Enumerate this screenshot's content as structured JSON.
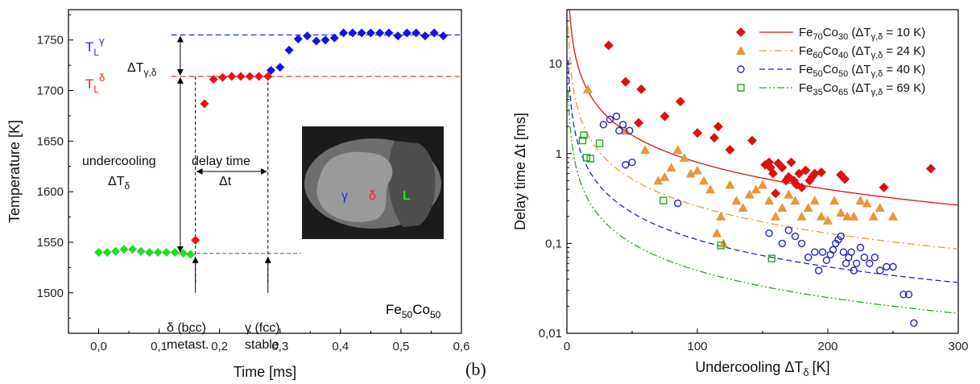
{
  "chart_data": [
    {
      "type": "scatter",
      "panel": "a",
      "xlabel": "Time [ms]",
      "ylabel": "Temperature [K]",
      "xlim": [
        -0.05,
        0.6
      ],
      "ylim": [
        1460,
        1780
      ],
      "xticks": [
        "0,0",
        "0,1",
        "0,2",
        "0,3",
        "0,4",
        "0,5",
        "0,6"
      ],
      "yticks": [
        "1500",
        "1550",
        "1600",
        "1650",
        "1700",
        "1750"
      ],
      "series": [
        {
          "color": "#22dd22",
          "x": [
            0.0,
            0.014,
            0.028,
            0.042,
            0.056,
            0.07,
            0.084,
            0.098,
            0.112,
            0.126,
            0.14,
            0.152
          ],
          "y": [
            1540,
            1540,
            1541,
            1543,
            1543,
            1541,
            1540,
            1540,
            1540,
            1540,
            1539,
            1538
          ]
        },
        {
          "color": "#ee1111",
          "x": [
            0.16,
            0.175,
            0.19,
            0.205,
            0.22,
            0.235,
            0.25,
            0.265,
            0.28
          ],
          "y": [
            1552,
            1687,
            1711,
            1713,
            1714,
            1714,
            1714,
            1714,
            1714
          ]
        },
        {
          "color": "#1111ee",
          "x": [
            0.285,
            0.3,
            0.315,
            0.33,
            0.345,
            0.36,
            0.375,
            0.39,
            0.405,
            0.42,
            0.435,
            0.45,
            0.465,
            0.48,
            0.495,
            0.51,
            0.525,
            0.54,
            0.555,
            0.57
          ],
          "y": [
            1720,
            1723,
            1740,
            1751,
            1754,
            1749,
            1750,
            1752,
            1757,
            1757,
            1757,
            1757,
            1757,
            1757,
            1754,
            1757,
            1757,
            1754,
            1757,
            1754
          ]
        }
      ],
      "reference_lines": [
        {
          "label_base": "T",
          "label_sub": "L",
          "label_sup": "γ",
          "y": 1755,
          "color": "#2233cc"
        },
        {
          "label_base": "T",
          "label_sub": "L",
          "label_sup": "δ",
          "y": 1714,
          "color": "#ee2222"
        },
        {
          "y": 1539,
          "color": "#555555"
        }
      ],
      "annotations": {
        "delta_t_gamma_delta": {
          "base": "ΔT",
          "sub": "γ,δ"
        },
        "undercooling": "undercooling",
        "undercooling_symbol": {
          "base": "ΔT",
          "sub": "δ"
        },
        "delay_time": "delay time",
        "delay_symbol": "Δt",
        "delta_phase": "δ (bcc)",
        "delta_phase_2": "metast.",
        "gamma_phase": "γ (fcc)",
        "gamma_phase_2": "stable",
        "alloy": {
          "p1": "Fe",
          "s1": "50",
          "p2": "Co",
          "s2": "50"
        },
        "inset_labels": [
          "γ",
          "δ",
          "L"
        ]
      }
    },
    {
      "type": "scatter",
      "panel": "b",
      "panel_label": "(b)",
      "xlabel_base": "Undercooling ΔT",
      "xlabel_sub": "δ",
      "xlabel_unit": "[K]",
      "ylabel": "Delay time Δt [ms]",
      "xlim": [
        0,
        300
      ],
      "ylim": [
        0.01,
        40
      ],
      "yscale": "log",
      "xticks": [
        "0",
        "100",
        "200",
        "300"
      ],
      "yticks": [
        "0,01",
        "0,1",
        "1",
        "10"
      ],
      "series": [
        {
          "name": "Fe70Co30",
          "legend": {
            "e1": "Fe",
            "s1": "70",
            "e2": "Co",
            "s2": "30",
            "dt": "10 K"
          },
          "marker": "diamond",
          "color": "#dd1111",
          "line": "solid",
          "fit_A": 80,
          "x": [
            32,
            45,
            55,
            57,
            75,
            87,
            100,
            113,
            116,
            125,
            142,
            152,
            155,
            156,
            158,
            160,
            162,
            165,
            168,
            170,
            172,
            174,
            176,
            178,
            180,
            183,
            186,
            188,
            190,
            195,
            210,
            213,
            243,
            279
          ],
          "y": [
            16,
            6.3,
            2.2,
            5.2,
            2.6,
            3.8,
            1.7,
            1.5,
            2.0,
            1.1,
            1.4,
            0.75,
            0.8,
            0.7,
            0.6,
            0.36,
            0.78,
            0.7,
            0.5,
            0.55,
            0.8,
            0.5,
            0.45,
            0.6,
            0.42,
            0.65,
            0.5,
            0.55,
            0.6,
            0.62,
            0.58,
            0.52,
            0.42,
            0.68
          ]
        },
        {
          "name": "Fe60Co40",
          "legend": {
            "e1": "Fe",
            "s1": "60",
            "e2": "Co",
            "s2": "40",
            "dt": "24 K"
          },
          "marker": "triangle",
          "color": "#e8963c",
          "line": "dashdot",
          "fit_A": 26,
          "x": [
            16,
            45,
            60,
            70,
            75,
            80,
            85,
            90,
            95,
            100,
            105,
            110,
            115,
            118,
            120,
            125,
            130,
            135,
            140,
            145,
            150,
            155,
            160,
            165,
            170,
            175,
            180,
            185,
            190,
            195,
            200,
            205,
            210,
            215,
            220,
            225,
            230,
            235,
            240,
            250
          ],
          "y": [
            5.2,
            1.8,
            1.1,
            0.5,
            0.55,
            0.7,
            1.1,
            0.9,
            0.6,
            0.65,
            0.5,
            0.4,
            0.13,
            0.2,
            0.1,
            0.45,
            0.3,
            0.25,
            0.35,
            0.4,
            0.45,
            0.3,
            0.2,
            0.25,
            0.35,
            0.3,
            0.2,
            0.25,
            0.3,
            0.2,
            0.18,
            0.3,
            0.22,
            0.2,
            0.2,
            0.3,
            0.28,
            0.2,
            0.25,
            0.2
          ]
        },
        {
          "name": "Fe50Co50",
          "legend": {
            "e1": "Fe",
            "s1": "50",
            "e2": "Co",
            "s2": "50",
            "dt": "40 K"
          },
          "marker": "circle",
          "color": "#2222cc",
          "line": "dashed",
          "fit_A": 11,
          "x": [
            28,
            33,
            38,
            40,
            43,
            45,
            48,
            50,
            85,
            155,
            165,
            170,
            175,
            180,
            185,
            190,
            193,
            196,
            199,
            202,
            204,
            206,
            208,
            210,
            212,
            214,
            216,
            218,
            220,
            222,
            225,
            228,
            232,
            236,
            240,
            245,
            250,
            258,
            262,
            266
          ],
          "y": [
            2.1,
            2.4,
            2.6,
            1.8,
            2.1,
            0.75,
            1.8,
            0.8,
            0.28,
            0.13,
            0.1,
            0.14,
            0.12,
            0.1,
            0.07,
            0.08,
            0.05,
            0.08,
            0.065,
            0.075,
            0.085,
            0.1,
            0.11,
            0.12,
            0.08,
            0.06,
            0.07,
            0.08,
            0.05,
            0.06,
            0.09,
            0.07,
            0.06,
            0.07,
            0.05,
            0.055,
            0.055,
            0.027,
            0.027,
            0.013
          ]
        },
        {
          "name": "Fe35Co65",
          "legend": {
            "e1": "Fe",
            "s1": "35",
            "e2": "Co",
            "s2": "65",
            "dt": "69 K"
          },
          "marker": "square",
          "color": "#22aa22",
          "line": "dashdotdot",
          "fit_A": 5,
          "x": [
            12,
            13,
            15,
            18,
            25,
            74,
            118,
            157
          ],
          "y": [
            1.4,
            1.6,
            0.9,
            0.88,
            1.3,
            0.3,
            0.095,
            0.068
          ]
        }
      ],
      "legend_placement": "top-right"
    }
  ],
  "inset": {
    "colors": {
      "bg": "#1c1c1c",
      "droplet": "#6e6e6e",
      "bright": "#9a9a9a",
      "liquid": "#4d4d4d"
    }
  },
  "colors": {
    "gamma_label": "#2233cc",
    "delta_label": "#ee2222",
    "liquid_label": "#22dd22"
  }
}
